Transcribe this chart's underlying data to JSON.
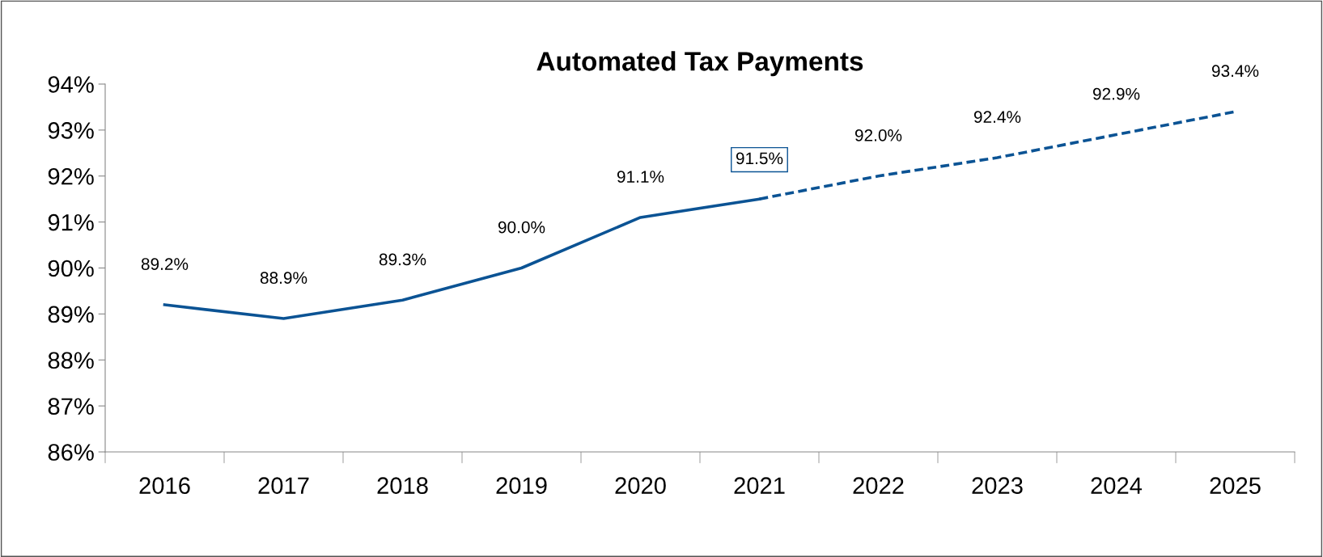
{
  "chart_data": {
    "type": "line",
    "title": "Automated Tax Payments",
    "categories": [
      "2016",
      "2017",
      "2018",
      "2019",
      "2020",
      "2021",
      "2022",
      "2023",
      "2024",
      "2025"
    ],
    "series": [
      {
        "color": "#0b5394",
        "line_style": "solid",
        "values": [
          89.2,
          88.9,
          89.3,
          90.0,
          91.1,
          91.5,
          null,
          null,
          null,
          null
        ],
        "value_labels": [
          "89.2%",
          "88.9%",
          "89.3%",
          "90.0%",
          "91.1%",
          "91.5%",
          null,
          null,
          null,
          null
        ]
      },
      {
        "color": "#0b5394",
        "line_style": "dashed",
        "values": [
          null,
          null,
          null,
          null,
          null,
          91.5,
          92.0,
          92.4,
          92.9,
          93.4
        ],
        "value_labels": [
          null,
          null,
          null,
          null,
          null,
          null,
          "92.0%",
          "92.4%",
          "92.9%",
          "93.4%"
        ]
      }
    ],
    "ylim": [
      86,
      94
    ],
    "yticks": [
      {
        "value": 86,
        "label": "86%"
      },
      {
        "value": 87,
        "label": "87%"
      },
      {
        "value": 88,
        "label": "88%"
      },
      {
        "value": 89,
        "label": "89%"
      },
      {
        "value": 90,
        "label": "90%"
      },
      {
        "value": 91,
        "label": "91%"
      },
      {
        "value": 92,
        "label": "92%"
      },
      {
        "value": 93,
        "label": "93%"
      },
      {
        "value": 94,
        "label": "94%"
      }
    ],
    "grid": false,
    "legend": false,
    "marker": "none"
  }
}
